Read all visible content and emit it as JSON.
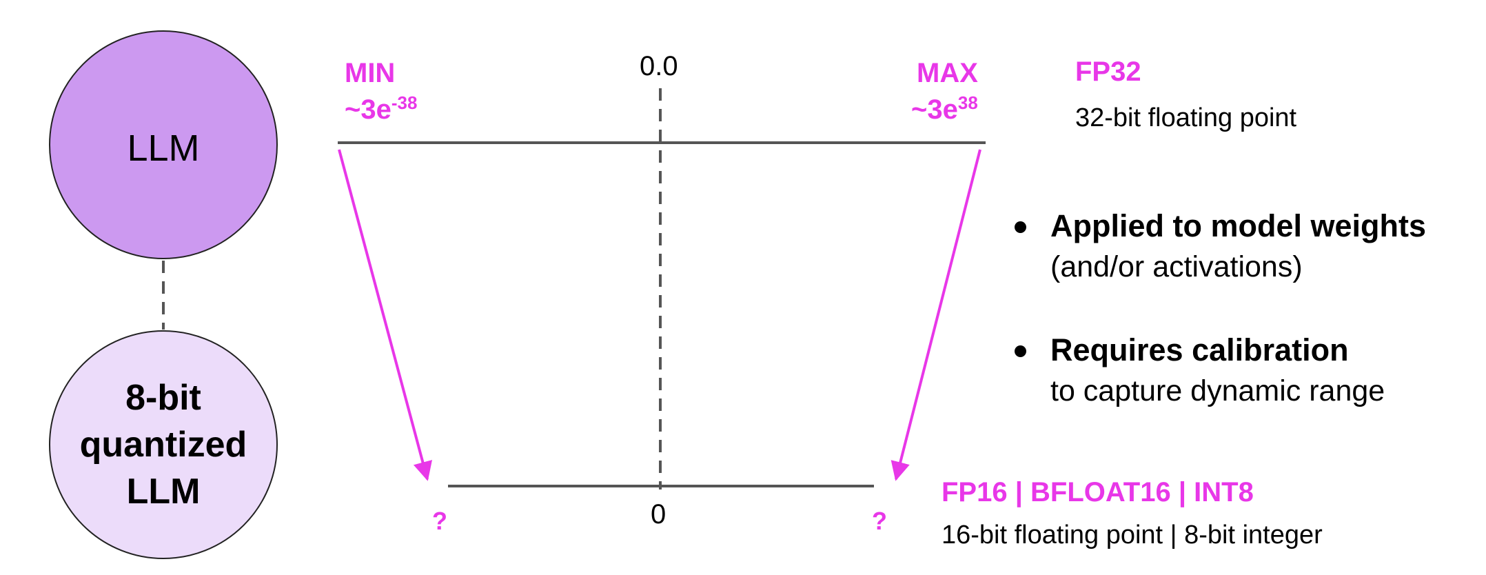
{
  "circles": {
    "top_label": "LLM",
    "bottom_label_line1": "8-bit",
    "bottom_label_line2": "quantized",
    "bottom_label_line3": "LLM",
    "top_color": "#cc99f0",
    "bottom_color": "#ecdcfa"
  },
  "top_range": {
    "min_label": "MIN",
    "min_value": "~3e",
    "min_exponent": "-38",
    "zero_label": "0.0",
    "max_label": "MAX",
    "max_value": "~3e",
    "max_exponent": "38"
  },
  "bottom_range": {
    "left_label": "?",
    "zero_label": "0",
    "right_label": "?"
  },
  "fp32": {
    "title": "FP32",
    "description": "32-bit floating point"
  },
  "low_precision": {
    "title": "FP16 | BFLOAT16 | INT8",
    "description": "16-bit floating point | 8-bit integer"
  },
  "bullets": [
    {
      "bold": "Applied to model weights",
      "detail": "(and/or activations)"
    },
    {
      "bold": "Requires calibration",
      "detail": "to capture dynamic range"
    }
  ],
  "colors": {
    "accent": "#e837e8",
    "line": "#555555",
    "text": "#000000"
  }
}
